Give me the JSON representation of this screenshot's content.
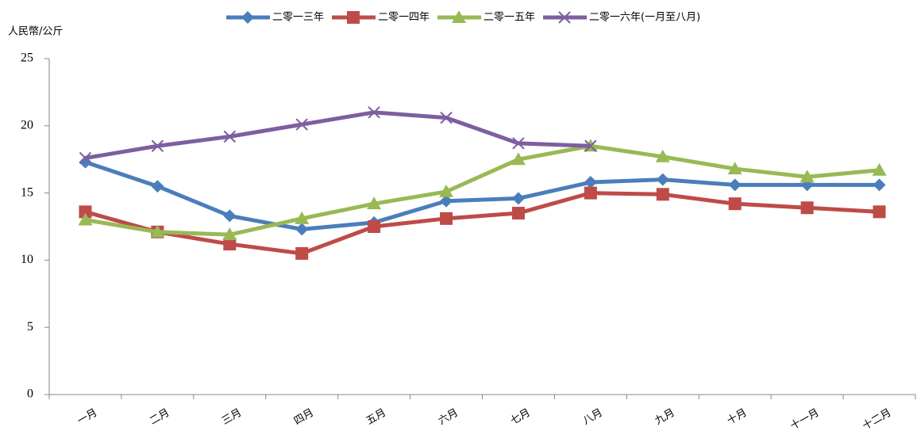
{
  "chart_data": {
    "type": "line",
    "y_label": "人民幣/公斤",
    "categories": [
      "一月",
      "二月",
      "三月",
      "四月",
      "五月",
      "六月",
      "七月",
      "八月",
      "九月",
      "十月",
      "十一月",
      "十二月"
    ],
    "series": [
      {
        "name": "二零一三年",
        "color": "#4a7ebb",
        "marker": "diamond",
        "values": [
          17.3,
          15.5,
          13.3,
          12.3,
          12.8,
          14.4,
          14.6,
          15.8,
          16.0,
          15.6,
          15.6,
          15.6
        ]
      },
      {
        "name": "二零一四年",
        "color": "#be4b48",
        "marker": "square",
        "values": [
          13.6,
          12.1,
          11.2,
          10.5,
          12.5,
          13.1,
          13.5,
          15.0,
          14.9,
          14.2,
          13.9,
          13.6
        ]
      },
      {
        "name": "二零一五年",
        "color": "#98b954",
        "marker": "triangle",
        "values": [
          13.0,
          12.1,
          11.9,
          13.1,
          14.2,
          15.1,
          17.5,
          18.5,
          17.7,
          16.8,
          16.2,
          16.7
        ]
      },
      {
        "name": "二零一六年(一月至八月)",
        "color": "#7d5fa0",
        "marker": "x",
        "values": [
          17.6,
          18.5,
          19.2,
          20.1,
          21.0,
          20.6,
          18.7,
          18.5,
          null,
          null,
          null,
          null
        ]
      }
    ],
    "ylim": [
      0,
      25
    ],
    "yticks": [
      0,
      5,
      10,
      15,
      20,
      25
    ],
    "grid": false,
    "legend": "top"
  }
}
